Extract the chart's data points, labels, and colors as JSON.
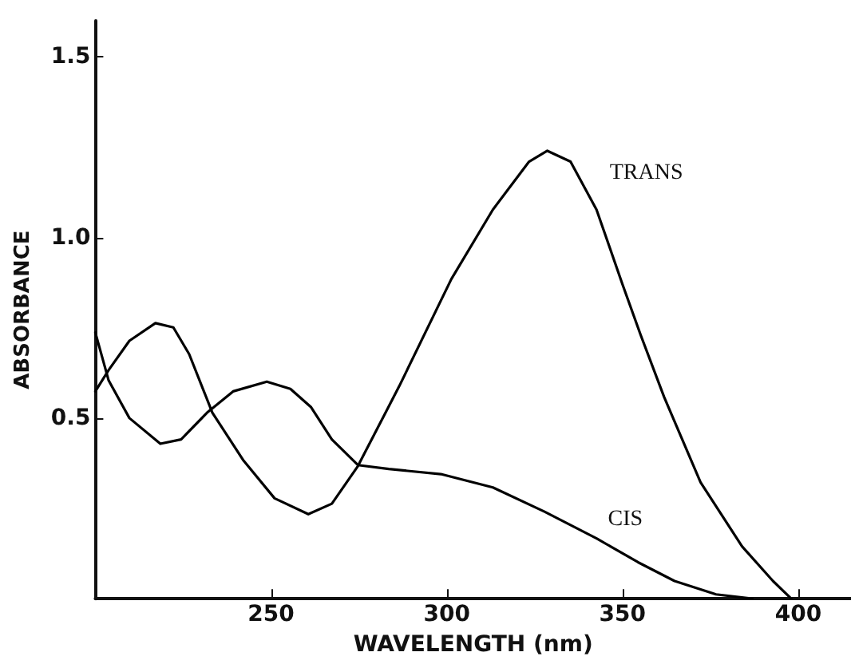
{
  "chart_data": {
    "type": "line",
    "xlabel": "WAVELENGTH (nm)",
    "ylabel": "ABSORBANCE",
    "xlim": [
      200,
      415
    ],
    "xticks": [
      250,
      300,
      350,
      400
    ],
    "ylim": [
      0,
      1.6
    ],
    "yticks": [
      0.5,
      {
        "value": 1,
        "label": "1.0"
      },
      1.5
    ],
    "grid": false,
    "legend": false,
    "marker": "none",
    "line_style": "solid",
    "series": [
      {
        "name": "TRANS",
        "color": "#000000",
        "x": [
          200,
          203.8,
          209.7,
          217.1,
          222.2,
          226.7,
          233.3,
          242.2,
          251,
          260.6,
          267.3,
          274.7,
          286.5,
          301.3,
          313.1,
          323.4,
          328.6,
          335.2,
          342.6,
          350,
          355.2,
          361.8,
          372.2,
          384,
          392.8,
          398
        ],
        "values": [
          0.574,
          0.633,
          0.714,
          0.763,
          0.751,
          0.677,
          0.515,
          0.382,
          0.278,
          0.234,
          0.263,
          0.367,
          0.589,
          0.885,
          1.077,
          1.21,
          1.24,
          1.21,
          1.077,
          0.87,
          0.729,
          0.559,
          0.322,
          0.145,
          0.049,
          0
        ]
      },
      {
        "name": "CIS",
        "color": "#000000",
        "x": [
          200,
          203.8,
          209.7,
          218.5,
          224.4,
          231.8,
          239.2,
          248.8,
          255.5,
          261.4,
          267.3,
          274.7,
          283.5,
          298.3,
          313.1,
          327.8,
          342.6,
          354.4,
          364.8,
          376.6,
          386.9
        ],
        "values": [
          0.737,
          0.604,
          0.5,
          0.429,
          0.441,
          0.515,
          0.574,
          0.601,
          0.581,
          0.53,
          0.441,
          0.37,
          0.359,
          0.345,
          0.308,
          0.241,
          0.167,
          0.101,
          0.049,
          0.012,
          0
        ]
      }
    ]
  }
}
